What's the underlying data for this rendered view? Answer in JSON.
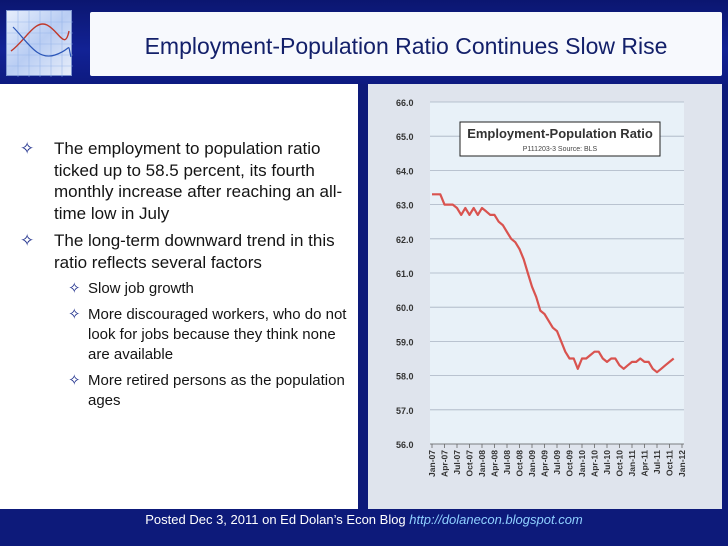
{
  "slide": {
    "title": "Employment-Population Ratio Continues Slow Rise",
    "logo_icon": "graph-grid-icon",
    "bullets": [
      {
        "text": "The employment to population ratio ticked up to 58.5 percent, its fourth monthly increase after reaching an all-time low in July",
        "level": 1
      },
      {
        "text": "The long-term downward trend in this ratio reflects several factors",
        "level": 1
      },
      {
        "text": "Slow job growth",
        "level": 2
      },
      {
        "text": "More discouraged workers, who do not look for jobs because they think none are available",
        "level": 2
      },
      {
        "text": "More retired persons as the population ages",
        "level": 2
      }
    ],
    "bullet_marker": "✧",
    "footer": {
      "text": "Posted Dec 3, 2011 on Ed Dolan’s Econ Blog",
      "link": "http://dolanecon.blogspot.com"
    }
  },
  "chart_data": {
    "type": "line",
    "title": "Employment-Population Ratio",
    "subtitle": "P111203-3 Source: BLS",
    "ylim": [
      56.0,
      66.0
    ],
    "yticks": [
      "56.0",
      "57.0",
      "58.0",
      "59.0",
      "60.0",
      "61.0",
      "62.0",
      "63.0",
      "64.0",
      "65.0",
      "66.0"
    ],
    "xticks": [
      "Jan-07",
      "Apr-07",
      "Jul-07",
      "Oct-07",
      "Jan-08",
      "Apr-08",
      "Jul-08",
      "Oct-08",
      "Jan-09",
      "Apr-09",
      "Jul-09",
      "Oct-09",
      "Jan-10",
      "Apr-10",
      "Jul-10",
      "Oct-10",
      "Jan-11",
      "Apr-11",
      "Jul-11",
      "Oct-11",
      "Jan-12"
    ],
    "grid": true,
    "line_color": "#d9534f",
    "series": [
      {
        "values": [
          63.3,
          63.3,
          63.3,
          63.0,
          63.0,
          63.0,
          62.9,
          62.7,
          62.9,
          62.7,
          62.9,
          62.7,
          62.9,
          62.8,
          62.7,
          62.7,
          62.5,
          62.4,
          62.2,
          62.0,
          61.9,
          61.7,
          61.4,
          61.0,
          60.6,
          60.3,
          59.9,
          59.8,
          59.6,
          59.4,
          59.3,
          59.0,
          58.7,
          58.5,
          58.5,
          58.2,
          58.5,
          58.5,
          58.6,
          58.7,
          58.7,
          58.5,
          58.4,
          58.5,
          58.5,
          58.3,
          58.2,
          58.3,
          58.4,
          58.4,
          58.5,
          58.4,
          58.4,
          58.2,
          58.1,
          58.2,
          58.3,
          58.4,
          58.5
        ]
      }
    ]
  }
}
